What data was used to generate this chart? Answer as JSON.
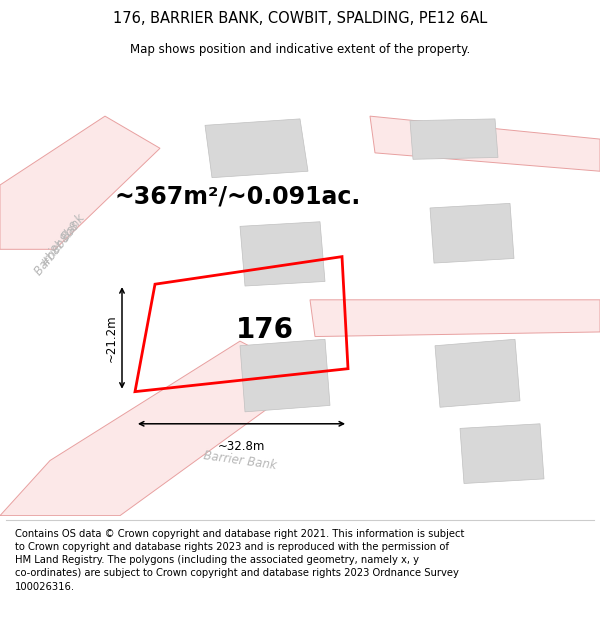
{
  "title": "176, BARRIER BANK, COWBIT, SPALDING, PE12 6AL",
  "subtitle": "Map shows position and indicative extent of the property.",
  "area_text": "~367m²/~0.091ac.",
  "property_number": "176",
  "dim_width": "~32.8m",
  "dim_height": "~21.2m",
  "footer": "Contains OS data © Crown copyright and database right 2021. This information is subject to Crown copyright and database rights 2023 and is reproduced with the permission of HM Land Registry. The polygons (including the associated geometry, namely x, y co-ordinates) are subject to Crown copyright and database rights 2023 Ordnance Survey 100026316.",
  "bg_color": "#ffffff",
  "road_fill": "#fce8e8",
  "road_edge": "#e8a0a0",
  "building_fill": "#d8d8d8",
  "building_edge": "#c0c0c0",
  "property_edge": "#ff0000",
  "street_label_color": "#b8b8b8",
  "title_fontsize": 10.5,
  "subtitle_fontsize": 8.5,
  "area_fontsize": 17,
  "number_fontsize": 20,
  "footer_fontsize": 7.2,
  "dim_fontsize": 8.5
}
